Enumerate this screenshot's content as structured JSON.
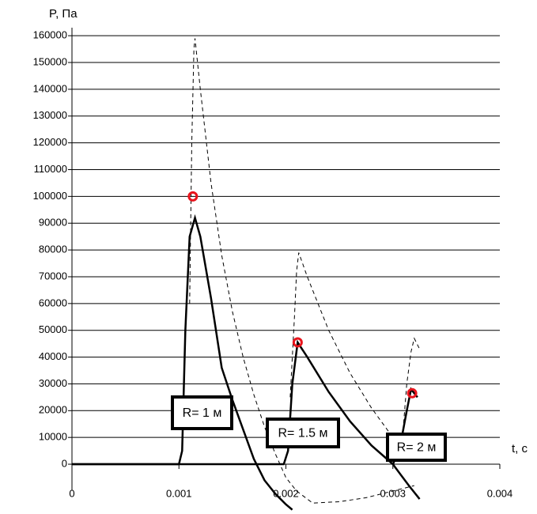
{
  "chart_data": {
    "type": "line",
    "ylabel": "P, Па",
    "xlabel": "t, c",
    "xlim": [
      0,
      0.004
    ],
    "ylim": [
      -18000,
      163000
    ],
    "xticks": [
      0,
      0.001,
      0.002,
      0.003,
      0.004
    ],
    "yticks": [
      0,
      10000,
      20000,
      30000,
      40000,
      50000,
      60000,
      70000,
      80000,
      90000,
      100000,
      110000,
      120000,
      130000,
      140000,
      150000,
      160000
    ],
    "grid": true,
    "series": [
      {
        "color": "#000000",
        "dashed": false,
        "x": [
          0,
          0.001,
          0.00103,
          0.00106,
          0.0011,
          0.00115,
          0.0012,
          0.0013,
          0.0014,
          0.0015,
          0.0016,
          0.0017,
          0.0018,
          0.0019,
          0.002,
          0.00206
        ],
        "values": [
          0,
          0,
          5000,
          50000,
          85000,
          92000,
          85000,
          62000,
          36000,
          24000,
          13000,
          2000,
          -6000,
          -11000,
          -15000,
          -17000
        ]
      },
      {
        "color": "#000000",
        "dashed": false,
        "x": [
          0,
          0.00198,
          0.00202,
          0.00206,
          0.00211,
          0.0022,
          0.0024,
          0.0026,
          0.0028,
          0.003,
          0.00315,
          0.00325
        ],
        "values": [
          0,
          0,
          5000,
          30000,
          45500,
          40000,
          27000,
          16000,
          7000,
          0,
          -8000,
          -13000
        ]
      },
      {
        "color": "#000000",
        "dashed": false,
        "x": [
          0.003,
          0.00306,
          0.00313,
          0.00317,
          0.00323
        ],
        "values": [
          0,
          5000,
          20000,
          28000,
          25000
        ]
      },
      {
        "color": "#000000",
        "dashed": true,
        "x": [
          0.0011,
          0.00112,
          0.00114,
          0.00115,
          0.0012,
          0.0013,
          0.0014,
          0.0015,
          0.0016,
          0.0017,
          0.0018,
          0.0019,
          0.002,
          0.0021,
          0.00225,
          0.0025,
          0.00275,
          0.003,
          0.0032
        ],
        "values": [
          60000,
          120000,
          155000,
          159000,
          140000,
          105000,
          78000,
          57000,
          40000,
          26000,
          14000,
          4000,
          -5000,
          -10000,
          -14500,
          -14000,
          -12500,
          -10000,
          -8000
        ]
      },
      {
        "color": "#000000",
        "dashed": true,
        "x": [
          0.00204,
          0.00208,
          0.0021,
          0.00212,
          0.0022,
          0.0024,
          0.0026,
          0.0028,
          0.003,
          0.00315
        ],
        "values": [
          25000,
          55000,
          72000,
          79000,
          70000,
          50000,
          34000,
          21000,
          10000,
          3000
        ]
      },
      {
        "color": "#000000",
        "dashed": true,
        "x": [
          0.00309,
          0.00313,
          0.00317,
          0.0032,
          0.00325
        ],
        "values": [
          10000,
          30000,
          42000,
          47000,
          43000
        ]
      }
    ],
    "markers": {
      "color": "#e8141c",
      "x": [
        0.00113,
        0.00211,
        0.00318
      ],
      "values": [
        100000,
        45500,
        26500
      ]
    },
    "annotations": [
      "R= 1 м",
      "R= 1.5 м",
      "R= 2 м"
    ]
  }
}
